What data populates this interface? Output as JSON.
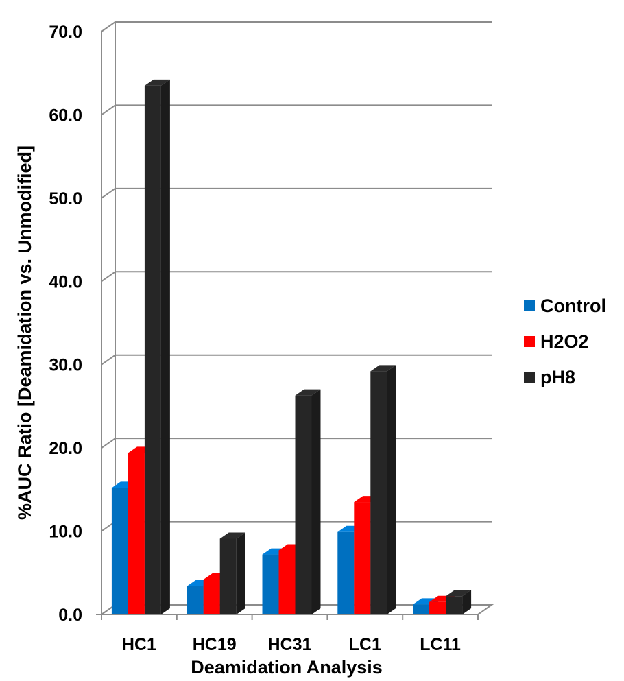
{
  "chart_data": {
    "type": "bar",
    "title": "",
    "xlabel": "Deamidation Analysis",
    "ylabel": "%AUC  Ratio [Deamidation vs. Unmodified]",
    "ylim": [
      0,
      70
    ],
    "yticks": [
      "0.0",
      "10.0",
      "20.0",
      "30.0",
      "40.0",
      "50.0",
      "60.0",
      "70.0"
    ],
    "categories": [
      "HC1",
      "HC19",
      "HC31",
      "LC1",
      "LC11"
    ],
    "series": [
      {
        "name": "Control",
        "color": "#0070c0",
        "values": [
          15.2,
          3.4,
          7.2,
          9.9,
          1.2
        ]
      },
      {
        "name": "H2O2",
        "color": "#ff0000",
        "values": [
          19.4,
          4.2,
          7.7,
          13.5,
          1.5
        ]
      },
      {
        "name": "pH8",
        "color": "#262626",
        "values": [
          63.5,
          9.1,
          26.3,
          29.2,
          2.2
        ]
      }
    ],
    "grid": true,
    "legend": "right",
    "style": "3d-clustered-column"
  }
}
